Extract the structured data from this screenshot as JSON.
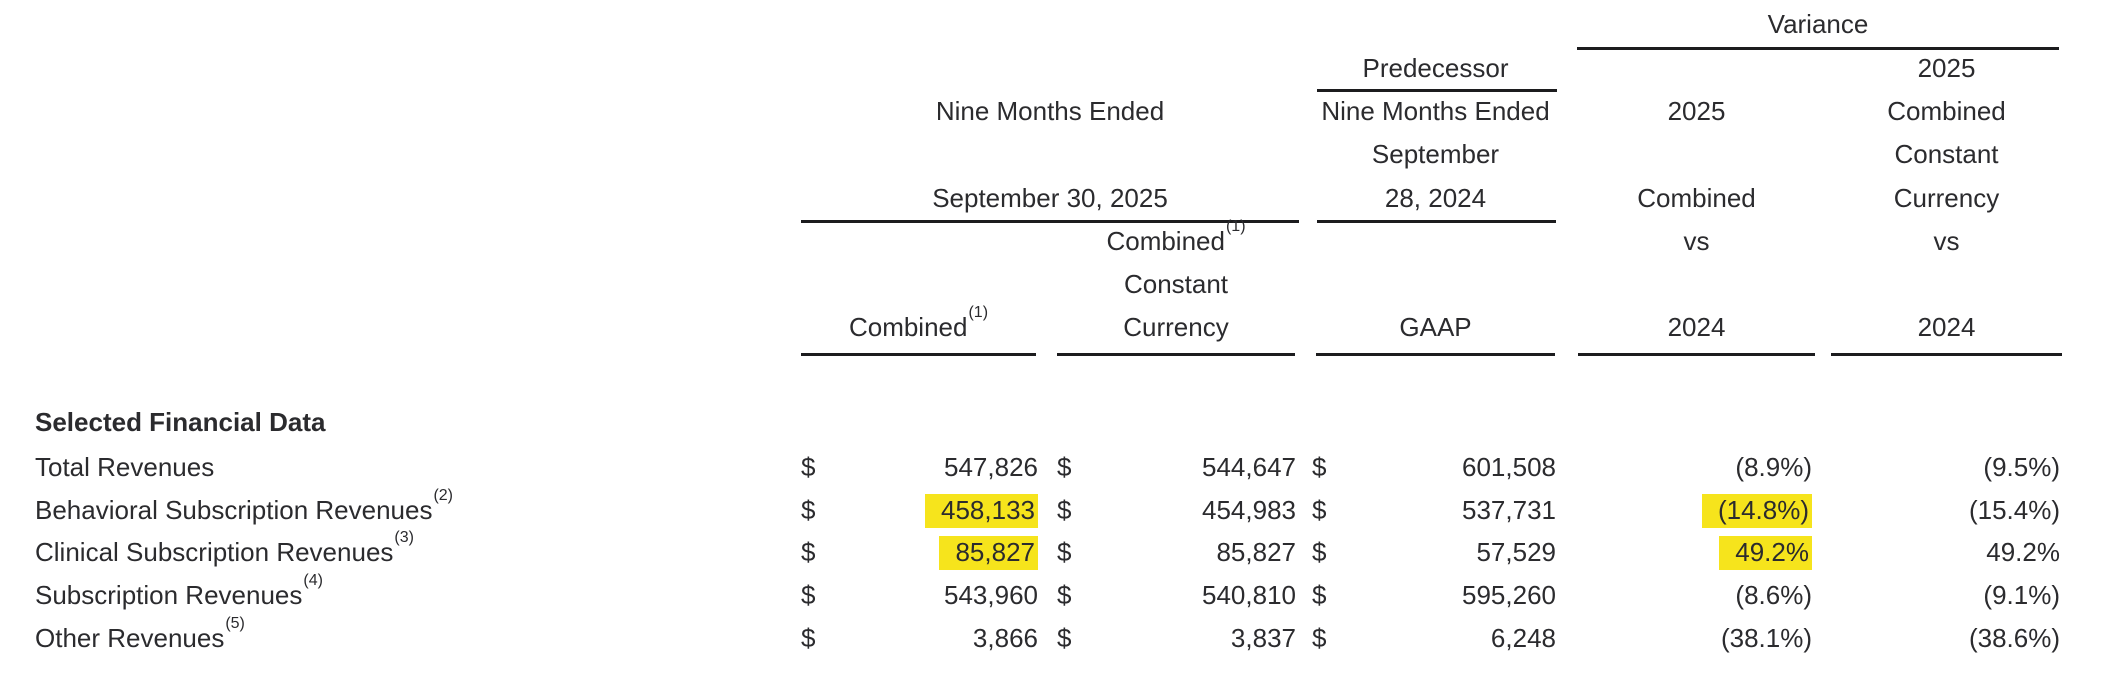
{
  "table": {
    "section_title": "Selected Financial Data",
    "currency_symbol": "$",
    "header": {
      "variance_group_label": "Variance",
      "nine_months_2025_group": {
        "line1": "Nine Months Ended",
        "line2": "September 30, 2025"
      },
      "combined_col": {
        "label": "Combined",
        "footnote": "(1)"
      },
      "constant_currency_col": {
        "label": "Combined",
        "footnote": "(1)",
        "line2": "Constant",
        "line3": "Currency"
      },
      "gaap_col": {
        "line1": "Predecessor",
        "line2": "Nine Months Ended",
        "line3": "September",
        "line4": "28, 2024",
        "label": "GAAP"
      },
      "variance_combined_col": {
        "line1": "2025",
        "line2": "Combined",
        "line3": "vs",
        "line4": "2024"
      },
      "variance_cc_col": {
        "line1": "2025",
        "line2": "Combined",
        "line3": "Constant",
        "line4": "Currency",
        "line5": "vs",
        "line6": "2024"
      }
    },
    "rows": [
      {
        "label": "Total Revenues",
        "footnote": "",
        "combined": "547,826",
        "combined_cc": "544,647",
        "gaap": "601,508",
        "var_combined": "(8.9%)",
        "var_cc": "(9.5%)",
        "highlight_combined": false,
        "highlight_var": false
      },
      {
        "label": "Behavioral Subscription Revenues",
        "footnote": "(2)",
        "combined": "458,133",
        "combined_cc": "454,983",
        "gaap": "537,731",
        "var_combined": "(14.8%)",
        "var_cc": "(15.4%)",
        "highlight_combined": true,
        "highlight_var": true
      },
      {
        "label": "Clinical Subscription Revenues",
        "footnote": "(3)",
        "combined": "85,827",
        "combined_cc": "85,827",
        "gaap": "57,529",
        "var_combined": "49.2%",
        "var_cc": "49.2%",
        "highlight_combined": true,
        "highlight_var": true
      },
      {
        "label": "Subscription Revenues",
        "footnote": "(4)",
        "combined": "543,960",
        "combined_cc": "540,810",
        "gaap": "595,260",
        "var_combined": "(8.6%)",
        "var_cc": "(9.1%)",
        "highlight_combined": false,
        "highlight_var": false
      },
      {
        "label": "Other Revenues",
        "footnote": "(5)",
        "combined": "3,866",
        "combined_cc": "3,837",
        "gaap": "6,248",
        "var_combined": "(38.1%)",
        "var_cc": "(38.6%)",
        "highlight_combined": false,
        "highlight_var": false
      }
    ],
    "colors": {
      "highlight": "#f6e41c",
      "text": "#2b2b2e",
      "rule": "#1c1c1e",
      "background": "#ffffff"
    }
  }
}
